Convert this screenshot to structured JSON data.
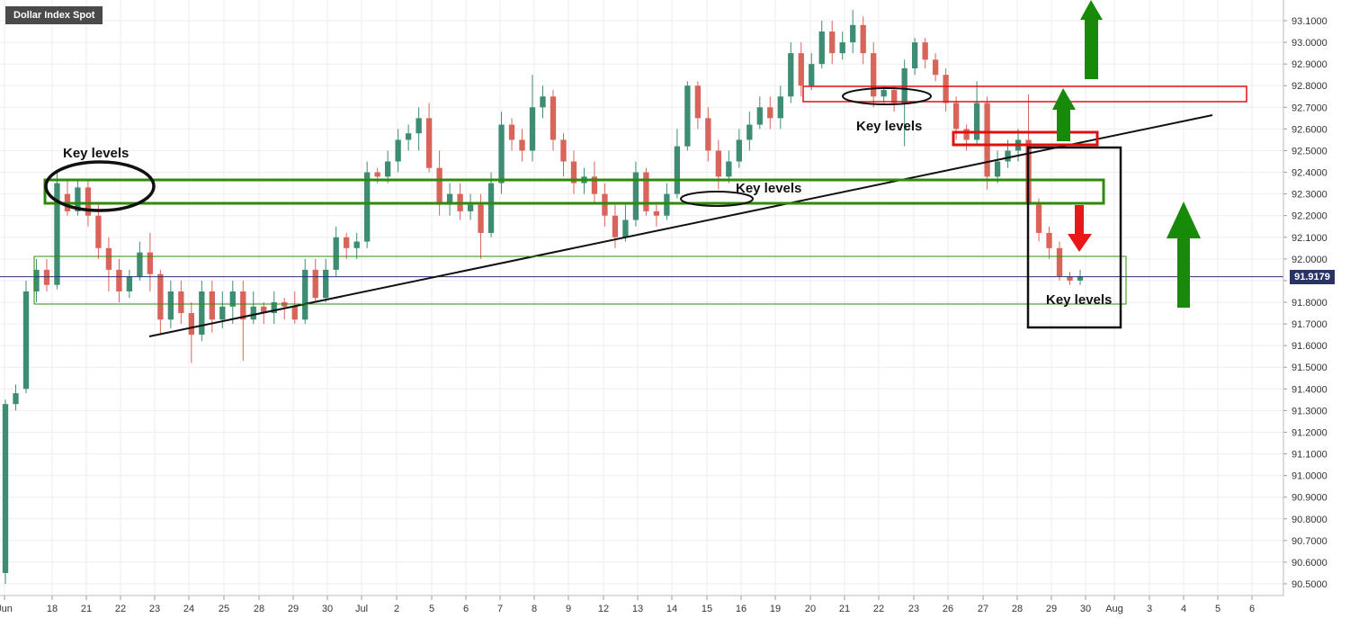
{
  "title": "Dollar Index Spot",
  "current_price": "91.9179",
  "colors": {
    "up": "#3d8c73",
    "down": "#d9645a",
    "grid": "#eeeeee",
    "box_green": "#2e8b0a",
    "box_red": "#e01010",
    "arrow_green": "#178a0a",
    "arrow_red": "#e81818",
    "price_line": "#2a3366"
  },
  "chart_data": {
    "type": "candlestick",
    "ylim": [
      90.45,
      93.15
    ],
    "y_ticks": [
      "93.1000",
      "93.0000",
      "92.9000",
      "92.8000",
      "92.7000",
      "92.6000",
      "92.5000",
      "92.4000",
      "92.3000",
      "92.2000",
      "92.1000",
      "92.0000",
      "91.9000",
      "91.8000",
      "91.7000",
      "91.6000",
      "91.5000",
      "91.4000",
      "91.3000",
      "91.2000",
      "91.1000",
      "91.0000",
      "90.9000",
      "90.8000",
      "90.7000",
      "90.6000",
      "90.5000"
    ],
    "x_ticks": [
      "Jun",
      "18",
      "21",
      "22",
      "23",
      "24",
      "25",
      "28",
      "29",
      "30",
      "Jul",
      "2",
      "5",
      "6",
      "7",
      "8",
      "9",
      "12",
      "13",
      "14",
      "15",
      "16",
      "19",
      "20",
      "21",
      "22",
      "23",
      "26",
      "27",
      "28",
      "29",
      "30",
      "Aug",
      "3",
      "4",
      "5",
      "6"
    ],
    "annotations": [
      "Key levels",
      "Key levels",
      "Key levels",
      "Key levels"
    ],
    "candles": [
      [
        90.55,
        91.33,
        90.5,
        91.35
      ],
      [
        91.33,
        91.38,
        91.3,
        91.42
      ],
      [
        91.4,
        91.85,
        91.38,
        91.9
      ],
      [
        91.85,
        91.95,
        91.8,
        92.0
      ],
      [
        91.95,
        91.88,
        91.85,
        92.0
      ],
      [
        91.88,
        92.35,
        91.86,
        92.4
      ],
      [
        92.3,
        92.22,
        92.2,
        92.36
      ],
      [
        92.22,
        92.33,
        92.2,
        92.36
      ],
      [
        92.33,
        92.2,
        92.15,
        92.36
      ],
      [
        92.2,
        92.05,
        92.0,
        92.25
      ],
      [
        92.05,
        91.95,
        91.85,
        92.1
      ],
      [
        91.95,
        91.85,
        91.8,
        92.0
      ],
      [
        91.85,
        91.92,
        91.82,
        91.95
      ],
      [
        91.92,
        92.03,
        91.9,
        92.08
      ],
      [
        92.03,
        91.93,
        91.85,
        92.12
      ],
      [
        91.93,
        91.72,
        91.65,
        91.95
      ],
      [
        91.72,
        91.85,
        91.68,
        91.9
      ],
      [
        91.85,
        91.75,
        91.7,
        91.9
      ],
      [
        91.75,
        91.65,
        91.52,
        91.8
      ],
      [
        91.65,
        91.85,
        91.62,
        91.9
      ],
      [
        91.85,
        91.72,
        91.66,
        91.9
      ],
      [
        91.72,
        91.78,
        91.68,
        91.85
      ],
      [
        91.78,
        91.85,
        91.7,
        91.9
      ],
      [
        91.85,
        91.72,
        91.53,
        91.9
      ],
      [
        91.72,
        91.78,
        91.7,
        91.85
      ],
      [
        91.78,
        91.75,
        91.7,
        91.8
      ],
      [
        91.75,
        91.8,
        91.7,
        91.85
      ],
      [
        91.8,
        91.78,
        91.72,
        91.82
      ],
      [
        91.78,
        91.72,
        91.7,
        91.85
      ],
      [
        91.72,
        91.95,
        91.7,
        92.0
      ],
      [
        91.95,
        91.82,
        91.8,
        92.0
      ],
      [
        91.82,
        91.95,
        91.8,
        92.0
      ],
      [
        91.95,
        92.1,
        91.92,
        92.15
      ],
      [
        92.1,
        92.05,
        92.0,
        92.12
      ],
      [
        92.05,
        92.08,
        92.0,
        92.12
      ],
      [
        92.08,
        92.4,
        92.05,
        92.45
      ],
      [
        92.4,
        92.38,
        92.35,
        92.42
      ],
      [
        92.38,
        92.45,
        92.35,
        92.5
      ],
      [
        92.45,
        92.55,
        92.4,
        92.6
      ],
      [
        92.55,
        92.58,
        92.5,
        92.62
      ],
      [
        92.58,
        92.65,
        92.5,
        92.7
      ],
      [
        92.65,
        92.42,
        92.4,
        92.72
      ],
      [
        92.42,
        92.25,
        92.2,
        92.5
      ],
      [
        92.25,
        92.3,
        92.2,
        92.35
      ],
      [
        92.3,
        92.22,
        92.18,
        92.35
      ],
      [
        92.22,
        92.25,
        92.18,
        92.3
      ],
      [
        92.25,
        92.12,
        92.0,
        92.3
      ],
      [
        92.12,
        92.35,
        92.1,
        92.4
      ],
      [
        92.35,
        92.62,
        92.3,
        92.68
      ],
      [
        92.62,
        92.55,
        92.5,
        92.65
      ],
      [
        92.55,
        92.5,
        92.45,
        92.6
      ],
      [
        92.5,
        92.7,
        92.45,
        92.85
      ],
      [
        92.7,
        92.75,
        92.65,
        92.8
      ],
      [
        92.75,
        92.55,
        92.5,
        92.78
      ],
      [
        92.55,
        92.45,
        92.38,
        92.58
      ],
      [
        92.45,
        92.35,
        92.3,
        92.5
      ],
      [
        92.35,
        92.38,
        92.3,
        92.42
      ],
      [
        92.38,
        92.3,
        92.25,
        92.45
      ],
      [
        92.3,
        92.2,
        92.15,
        92.35
      ],
      [
        92.2,
        92.1,
        92.05,
        92.25
      ],
      [
        92.1,
        92.18,
        92.08,
        92.25
      ],
      [
        92.18,
        92.4,
        92.15,
        92.45
      ],
      [
        92.4,
        92.22,
        92.2,
        92.42
      ],
      [
        92.22,
        92.2,
        92.15,
        92.25
      ],
      [
        92.2,
        92.3,
        92.18,
        92.35
      ],
      [
        92.3,
        92.52,
        92.28,
        92.6
      ],
      [
        92.52,
        92.8,
        92.5,
        92.82
      ],
      [
        92.8,
        92.65,
        92.6,
        92.82
      ],
      [
        92.65,
        92.5,
        92.45,
        92.7
      ],
      [
        92.5,
        92.38,
        92.32,
        92.55
      ],
      [
        92.38,
        92.45,
        92.35,
        92.5
      ],
      [
        92.45,
        92.55,
        92.42,
        92.6
      ],
      [
        92.55,
        92.62,
        92.5,
        92.68
      ],
      [
        92.62,
        92.7,
        92.6,
        92.75
      ],
      [
        92.7,
        92.65,
        92.6,
        92.75
      ],
      [
        92.65,
        92.75,
        92.6,
        92.8
      ],
      [
        92.75,
        92.95,
        92.72,
        93.0
      ],
      [
        92.95,
        92.8,
        92.75,
        93.0
      ],
      [
        92.8,
        92.9,
        92.78,
        92.95
      ],
      [
        92.9,
        93.05,
        92.88,
        93.1
      ],
      [
        93.05,
        92.95,
        92.9,
        93.1
      ],
      [
        92.95,
        93.0,
        92.92,
        93.05
      ],
      [
        93.0,
        93.08,
        92.95,
        93.15
      ],
      [
        93.08,
        92.95,
        92.9,
        93.12
      ],
      [
        92.95,
        92.75,
        92.7,
        93.0
      ],
      [
        92.75,
        92.78,
        92.72,
        92.8
      ],
      [
        92.78,
        92.72,
        92.68,
        92.8
      ],
      [
        92.72,
        92.88,
        92.52,
        92.92
      ],
      [
        92.88,
        93.0,
        92.85,
        93.02
      ],
      [
        93.0,
        92.92,
        92.88,
        93.02
      ],
      [
        92.92,
        92.85,
        92.82,
        92.95
      ],
      [
        92.85,
        92.72,
        92.68,
        92.88
      ],
      [
        92.72,
        92.6,
        92.55,
        92.75
      ],
      [
        92.6,
        92.55,
        92.5,
        92.62
      ],
      [
        92.55,
        92.72,
        92.52,
        92.82
      ],
      [
        92.72,
        92.38,
        92.32,
        92.75
      ],
      [
        92.38,
        92.45,
        92.35,
        92.5
      ],
      [
        92.45,
        92.5,
        92.42,
        92.55
      ],
      [
        92.5,
        92.55,
        92.45,
        92.6
      ],
      [
        92.55,
        92.25,
        92.22,
        92.76
      ],
      [
        92.25,
        92.12,
        92.08,
        92.28
      ],
      [
        92.12,
        92.05,
        92.0,
        92.15
      ],
      [
        92.05,
        91.92,
        91.9,
        92.08
      ],
      [
        91.92,
        91.9,
        91.88,
        91.94
      ],
      [
        91.9,
        91.92,
        91.88,
        91.95
      ]
    ]
  }
}
